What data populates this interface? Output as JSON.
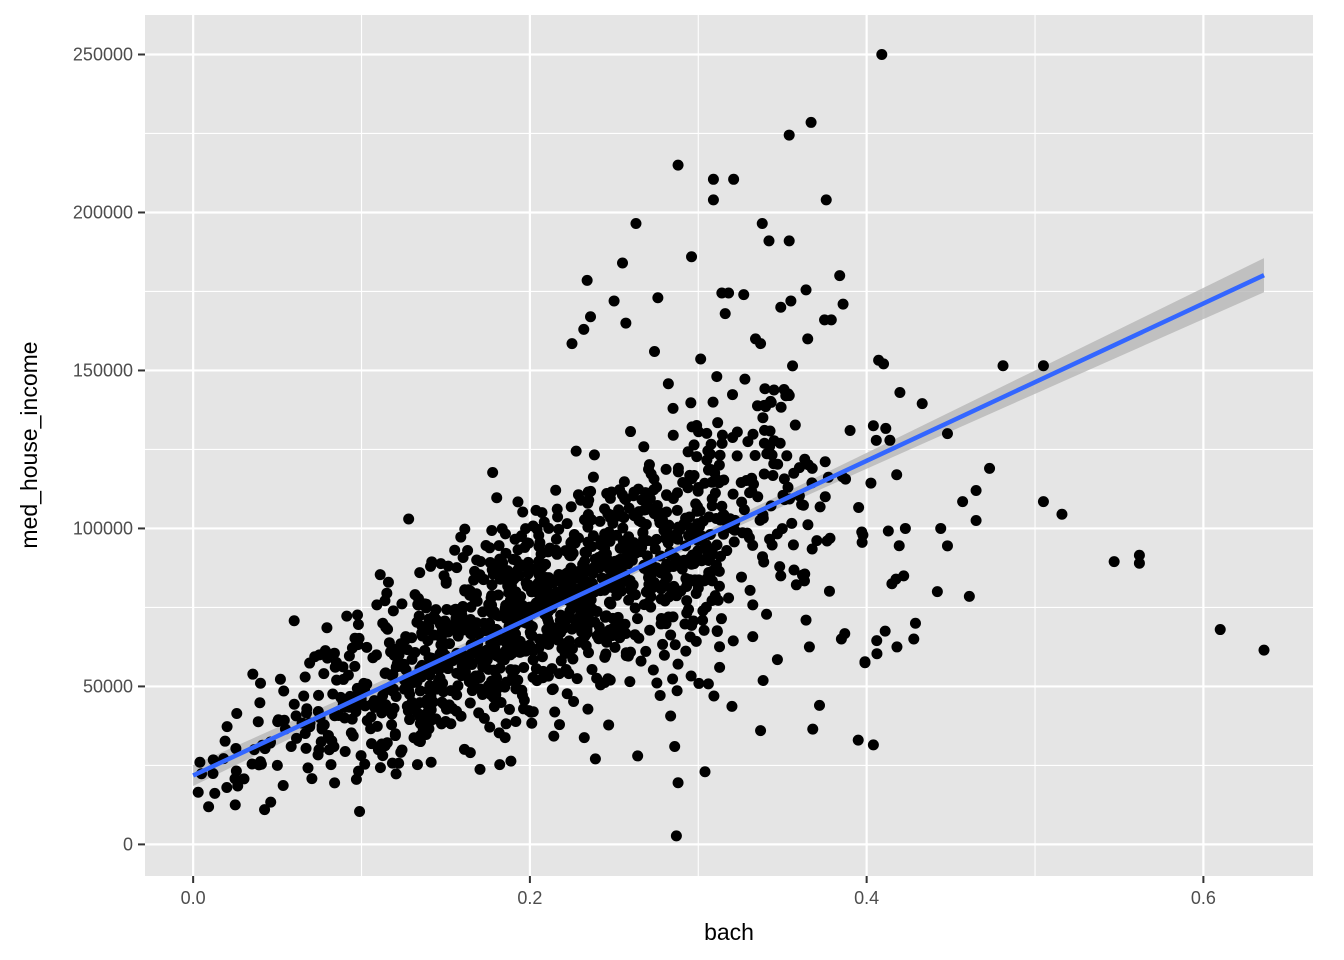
{
  "chart_data": {
    "type": "scatter",
    "xlabel": "bach",
    "ylabel": "med_house_income",
    "xlim": [
      -0.0286,
      0.6651
    ],
    "ylim": [
      -10000,
      262500
    ],
    "x_ticks": [
      0.0,
      0.2,
      0.4,
      0.6
    ],
    "x_tick_labels": [
      "0.0",
      "0.2",
      "0.4",
      "0.6"
    ],
    "y_ticks": [
      0,
      50000,
      100000,
      150000,
      200000,
      250000
    ],
    "y_tick_labels": [
      "0",
      "50000",
      "100000",
      "150000",
      "200000",
      "250000"
    ],
    "grid": true,
    "legend": "none",
    "colors": {
      "panel_bg": "#e5e5e5",
      "grid": "#ffffff",
      "points": "#000000",
      "fit_line": "#3366ff",
      "confidence_band": "#b3b3b3"
    },
    "fit": {
      "method": "lm",
      "intercept": 21800,
      "slope": 249000,
      "x_range": [
        0.0,
        0.636
      ],
      "se_band": {
        "x": [
          0.0,
          0.1,
          0.2,
          0.3,
          0.4,
          0.5,
          0.636
        ],
        "half_width": [
          3300,
          2200,
          1400,
          1500,
          2500,
          3700,
          5400
        ]
      }
    },
    "series": [
      {
        "x": [
          0.409,
          0.367,
          0.354,
          0.288,
          0.309,
          0.309,
          0.321,
          0.338,
          0.376,
          0.263,
          0.342,
          0.255,
          0.354,
          0.296,
          0.384,
          0.364,
          0.234,
          0.276,
          0.25,
          0.314,
          0.318,
          0.327,
          0.349,
          0.236,
          0.386,
          0.355,
          0.316,
          0.337,
          0.365,
          0.257,
          0.232,
          0.375,
          0.379,
          0.334,
          0.404,
          0.274,
          0.481,
          0.505,
          0.433,
          0.448,
          0.225,
          0.352,
          0.457,
          0.473,
          0.505,
          0.516,
          0.547,
          0.562,
          0.562,
          0.61,
          0.636,
          0.448,
          0.461,
          0.429,
          0.372,
          0.368,
          0.347,
          0.395,
          0.404,
          0.399,
          0.337,
          0.286,
          0.304,
          0.264,
          0.288,
          0.287,
          0.32,
          0.306,
          0.06,
          0.075,
          0.02,
          0.004,
          0.003,
          0.025,
          0.04,
          0.05,
          0.09,
          0.11,
          0.13,
          0.16,
          0.17,
          0.182,
          0.202,
          0.219,
          0.24,
          0.266,
          0.285,
          0.318,
          0.349,
          0.186,
          0.198,
          0.21,
          0.163,
          0.141,
          0.128,
          0.406,
          0.411,
          0.418,
          0.415,
          0.442,
          0.423,
          0.465,
          0.465,
          0.444,
          0.364,
          0.366,
          0.385,
          0.399,
          0.428,
          0.422
        ],
        "y": [
          250000,
          228500,
          224500,
          215000,
          210500,
          204000,
          210500,
          196500,
          204000,
          196500,
          191000,
          184000,
          191000,
          186000,
          180000,
          175500,
          178500,
          173000,
          172000,
          174500,
          174500,
          174000,
          170000,
          167000,
          171000,
          172000,
          168000,
          158500,
          160000,
          165000,
          163000,
          166000,
          166000,
          160000,
          132500,
          156000,
          151500,
          151500,
          139500,
          130000,
          158500,
          142000,
          108500,
          119000,
          108500,
          104500,
          89500,
          89000,
          91500,
          68000,
          61500,
          94500,
          78500,
          70000,
          44000,
          36500,
          58500,
          33000,
          31500,
          57800,
          36000,
          31000,
          23000,
          28000,
          19500,
          2700,
          43700,
          50800,
          70800,
          60000,
          18000,
          26000,
          16500,
          12500,
          51000,
          25000,
          40000,
          30000,
          45000,
          55000,
          60000,
          50000,
          42000,
          62000,
          66000,
          58000,
          72000,
          78000,
          85000,
          64000,
          70000,
          68000,
          93000,
          88000,
          103000,
          64500,
          67500,
          62500,
          82500,
          80000,
          100000,
          102500,
          112000,
          100000,
          71000,
          62500,
          65000,
          57500,
          65000,
          85000
        ]
      }
    ]
  }
}
